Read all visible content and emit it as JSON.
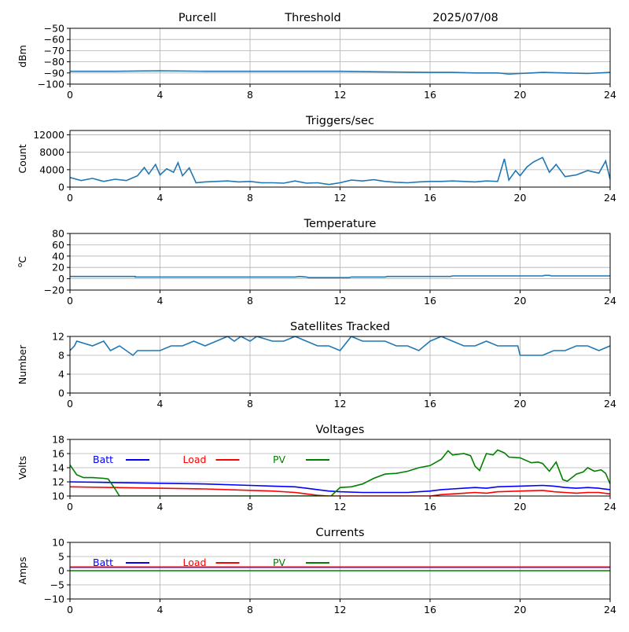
{
  "header": {
    "site": "Purcell",
    "threshold_label": "Threshold",
    "date": "2025/07/08"
  },
  "colors": {
    "series": "#1f77b4",
    "batt": "#0000ff",
    "load": "#ff0000",
    "pv": "#008000",
    "grid": "#b0b0b0",
    "axis": "#000000"
  },
  "chart_data": [
    {
      "id": "threshold",
      "type": "line",
      "title": "",
      "xlabel": "",
      "ylabel": "dBm",
      "xlim": [
        0,
        24
      ],
      "ylim": [
        -100,
        -50
      ],
      "xticks": [
        0,
        4,
        8,
        12,
        16,
        20,
        24
      ],
      "yticks": [
        -100,
        -90,
        -80,
        -70,
        -60,
        -50
      ],
      "grid": true,
      "series": [
        {
          "color": "#1f77b4",
          "x": [
            0,
            2,
            4,
            6,
            8,
            10,
            12,
            14,
            16,
            17,
            18,
            19,
            19.5,
            20,
            20.5,
            21,
            22,
            23,
            24
          ],
          "y": [
            -88.5,
            -88.5,
            -88,
            -88.5,
            -88.5,
            -88.5,
            -88.5,
            -89,
            -89.5,
            -89.5,
            -90,
            -90,
            -91,
            -90.5,
            -90,
            -89.5,
            -90,
            -90.5,
            -89.5
          ]
        }
      ]
    },
    {
      "id": "triggers",
      "type": "line",
      "title": "Triggers/sec",
      "xlabel": "",
      "ylabel": "Count",
      "xlim": [
        0,
        24
      ],
      "ylim": [
        0,
        13000
      ],
      "xticks": [
        0,
        4,
        8,
        12,
        16,
        20,
        24
      ],
      "yticks": [
        0,
        4000,
        8000,
        12000
      ],
      "grid": true,
      "series": [
        {
          "color": "#1f77b4",
          "x": [
            0,
            0.5,
            1,
            1.5,
            2,
            2.5,
            3,
            3.3,
            3.5,
            3.8,
            4,
            4.3,
            4.6,
            4.8,
            5,
            5.3,
            5.6,
            6,
            6.5,
            7,
            7.5,
            8,
            8.5,
            9,
            9.5,
            10,
            10.5,
            11,
            11.5,
            12,
            12.5,
            13,
            13.5,
            14,
            14.5,
            15,
            15.5,
            16,
            16.5,
            17,
            17.5,
            18,
            18.5,
            19,
            19.3,
            19.5,
            19.8,
            20,
            20.3,
            20.6,
            21,
            21.3,
            21.6,
            22,
            22.5,
            23,
            23.5,
            23.8,
            24
          ],
          "y": [
            2200,
            1500,
            2000,
            1300,
            1800,
            1500,
            2600,
            4500,
            3000,
            5200,
            2800,
            4200,
            3400,
            5600,
            2600,
            4400,
            1000,
            1200,
            1300,
            1400,
            1200,
            1300,
            1000,
            1000,
            900,
            1400,
            900,
            1000,
            600,
            1000,
            1600,
            1400,
            1700,
            1300,
            1100,
            1000,
            1200,
            1300,
            1300,
            1400,
            1300,
            1200,
            1400,
            1300,
            6500,
            1600,
            3800,
            2600,
            4600,
            5800,
            6800,
            3400,
            5200,
            2400,
            2800,
            3800,
            3200,
            6000,
            1800
          ]
        }
      ]
    },
    {
      "id": "temperature",
      "type": "line",
      "title": "Temperature",
      "xlabel": "",
      "ylabel": "°C",
      "xlim": [
        0,
        24
      ],
      "ylim": [
        -20,
        80
      ],
      "xticks": [
        0,
        4,
        8,
        12,
        16,
        20,
        24
      ],
      "yticks": [
        -20,
        0,
        20,
        40,
        60,
        80
      ],
      "grid": true,
      "series": [
        {
          "color": "#1f77b4",
          "x": [
            0,
            2.9,
            2.9,
            10,
            10.2,
            10.5,
            10.6,
            12.4,
            12.5,
            14,
            14.1,
            16.9,
            17,
            21,
            21.1,
            21.3,
            21.4,
            24
          ],
          "y": [
            4,
            4,
            3,
            3,
            4,
            3,
            2,
            2,
            3,
            3,
            4,
            4,
            5,
            5,
            6,
            6,
            5,
            5
          ]
        }
      ]
    },
    {
      "id": "satellites",
      "type": "line",
      "title": "Satellites Tracked",
      "xlabel": "",
      "ylabel": "Number",
      "xlim": [
        0,
        24
      ],
      "ylim": [
        0,
        12
      ],
      "xticks": [
        0,
        4,
        8,
        12,
        16,
        20,
        24
      ],
      "yticks": [
        0,
        4,
        8,
        12
      ],
      "grid": true,
      "series": [
        {
          "color": "#1f77b4",
          "x": [
            0,
            0.2,
            0.3,
            1,
            1.5,
            1.8,
            2.2,
            2.8,
            3,
            3.5,
            4,
            4.5,
            5,
            5.5,
            6,
            6.5,
            7,
            7.3,
            7.6,
            8,
            8.3,
            9,
            9.5,
            10,
            10.5,
            11,
            11.5,
            12,
            12.5,
            13,
            13.5,
            14,
            14.5,
            15,
            15.5,
            16,
            16.5,
            17,
            17.5,
            18,
            18.5,
            19,
            19.5,
            19.9,
            20,
            21,
            21.5,
            22,
            22.5,
            23,
            23.5,
            24
          ],
          "y": [
            9,
            10,
            11,
            10,
            11,
            9,
            10,
            8,
            9,
            9,
            9,
            10,
            10,
            11,
            10,
            11,
            12,
            11,
            12,
            11,
            12,
            11,
            11,
            12,
            11,
            10,
            10,
            9,
            12,
            11,
            11,
            11,
            10,
            10,
            9,
            11,
            12,
            11,
            10,
            10,
            11,
            10,
            10,
            10,
            8,
            8,
            9,
            9,
            10,
            10,
            9,
            10
          ]
        }
      ]
    },
    {
      "id": "voltages",
      "type": "line",
      "title": "Voltages",
      "xlabel": "",
      "ylabel": "Volts",
      "xlim": [
        0,
        24
      ],
      "ylim": [
        10,
        18
      ],
      "xticks": [
        0,
        4,
        8,
        12,
        16,
        20,
        24
      ],
      "yticks": [
        10,
        12,
        14,
        16,
        18
      ],
      "grid": true,
      "legend": "top-left",
      "series": [
        {
          "name": "Batt",
          "color": "#0000ff",
          "x": [
            0,
            2,
            4,
            6,
            8,
            9,
            10,
            10.5,
            11,
            11.5,
            12,
            13,
            14,
            15,
            15.5,
            16,
            16.5,
            17,
            17.5,
            18,
            18.5,
            19,
            20,
            21,
            21.5,
            22,
            22.5,
            23,
            23.5,
            24
          ],
          "y": [
            12.0,
            11.9,
            11.8,
            11.7,
            11.5,
            11.4,
            11.3,
            11.1,
            10.9,
            10.7,
            10.6,
            10.5,
            10.5,
            10.5,
            10.6,
            10.7,
            10.9,
            11.0,
            11.1,
            11.2,
            11.1,
            11.3,
            11.4,
            11.5,
            11.4,
            11.2,
            11.1,
            11.2,
            11.1,
            10.9
          ]
        },
        {
          "name": "Load",
          "color": "#ff0000",
          "x": [
            0,
            2,
            4,
            6,
            8,
            9,
            10,
            10.5,
            11,
            11.5,
            12,
            16,
            16.5,
            17,
            17.5,
            18,
            18.5,
            19,
            20,
            21,
            21.5,
            22,
            22.5,
            23,
            23.5,
            24
          ],
          "y": [
            11.3,
            11.2,
            11.1,
            11.0,
            10.8,
            10.7,
            10.5,
            10.3,
            10.1,
            10.0,
            10.0,
            10.0,
            10.2,
            10.3,
            10.4,
            10.5,
            10.4,
            10.6,
            10.7,
            10.8,
            10.6,
            10.5,
            10.4,
            10.5,
            10.5,
            10.3
          ]
        },
        {
          "name": "PV",
          "color": "#008000",
          "x": [
            0,
            0.3,
            0.6,
            1,
            1.5,
            1.7,
            2,
            2.2,
            11.6,
            12,
            12.5,
            13,
            13.5,
            14,
            14.5,
            15,
            15.5,
            16,
            16.5,
            16.8,
            17,
            17.5,
            17.8,
            18,
            18.2,
            18.5,
            18.8,
            19,
            19.3,
            19.5,
            20,
            20.5,
            20.8,
            21,
            21.3,
            21.6,
            21.9,
            22.1,
            22.5,
            22.8,
            23,
            23.3,
            23.6,
            23.8,
            24
          ],
          "y": [
            14.4,
            13.0,
            12.6,
            12.6,
            12.5,
            12.4,
            11.0,
            10.0,
            10.0,
            11.2,
            11.3,
            11.7,
            12.5,
            13.1,
            13.2,
            13.5,
            14.0,
            14.3,
            15.2,
            16.4,
            15.8,
            16.0,
            15.7,
            14.2,
            13.6,
            16.0,
            15.8,
            16.5,
            16.1,
            15.5,
            15.4,
            14.7,
            14.8,
            14.6,
            13.5,
            14.8,
            12.3,
            12.1,
            13.1,
            13.4,
            14.0,
            13.5,
            13.7,
            13.2,
            11.7
          ]
        }
      ]
    },
    {
      "id": "currents",
      "type": "line",
      "title": "Currents",
      "xlabel": "",
      "ylabel": "Amps",
      "xlim": [
        0,
        24
      ],
      "ylim": [
        -10,
        10
      ],
      "xticks": [
        0,
        4,
        8,
        12,
        16,
        20,
        24
      ],
      "yticks": [
        -10,
        -5,
        0,
        5,
        10
      ],
      "grid": true,
      "legend": "top-left",
      "series": [
        {
          "name": "Batt",
          "color": "#0000ff",
          "x": [
            0,
            24
          ],
          "y": [
            1.2,
            1.2
          ]
        },
        {
          "name": "Load",
          "color": "#ff0000",
          "x": [
            0,
            24
          ],
          "y": [
            1.3,
            1.3
          ]
        },
        {
          "name": "PV",
          "color": "#008000",
          "x": [
            0,
            24
          ],
          "y": [
            0.0,
            0.0
          ]
        }
      ]
    }
  ]
}
